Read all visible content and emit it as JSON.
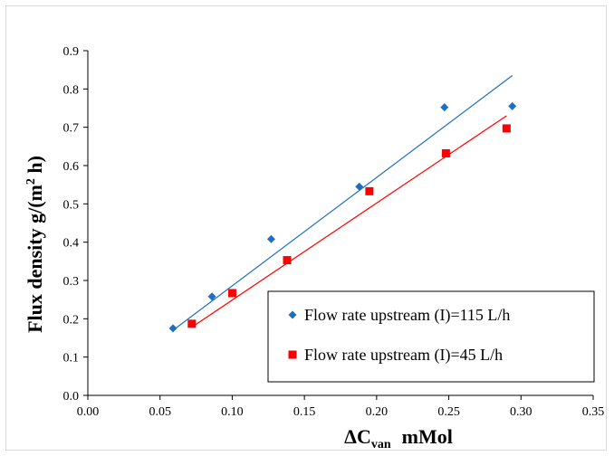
{
  "chart_data": {
    "type": "scatter",
    "title": "",
    "xlabel": {
      "main": "ΔC",
      "sub": "van",
      "unit": "mMol"
    },
    "ylabel": {
      "main": "Flux density  g/(m",
      "sup": "2",
      "tail": " h)"
    },
    "xlim": [
      0,
      0.35
    ],
    "ylim": [
      0,
      0.9
    ],
    "x_ticks": [
      "0.00",
      "0.05",
      "0.10",
      "0.15",
      "0.20",
      "0.25",
      "0.30",
      "0.35"
    ],
    "y_ticks": [
      "0.0",
      "0.1",
      "0.2",
      "0.3",
      "0.4",
      "0.5",
      "0.6",
      "0.7",
      "0.8",
      "0.9"
    ],
    "grid": false,
    "legend_position": "bottom-right",
    "series": [
      {
        "name": "Flow rate upstream (I)=115 L/h",
        "marker": "diamond",
        "color": "#1f6fbf",
        "points": [
          [
            0.059,
            0.175
          ],
          [
            0.086,
            0.258
          ],
          [
            0.127,
            0.408
          ],
          [
            0.188,
            0.545
          ],
          [
            0.247,
            0.752
          ],
          [
            0.294,
            0.755
          ]
        ],
        "trendline": [
          [
            0.059,
            0.17
          ],
          [
            0.294,
            0.835
          ]
        ]
      },
      {
        "name": "Flow rate upstream (I)=45 L/h",
        "marker": "square",
        "color": "#ff0000",
        "points": [
          [
            0.072,
            0.187
          ],
          [
            0.1,
            0.267
          ],
          [
            0.138,
            0.353
          ],
          [
            0.195,
            0.533
          ],
          [
            0.248,
            0.632
          ],
          [
            0.29,
            0.697
          ]
        ],
        "trendline": [
          [
            0.072,
            0.178
          ],
          [
            0.29,
            0.73
          ]
        ]
      }
    ]
  }
}
